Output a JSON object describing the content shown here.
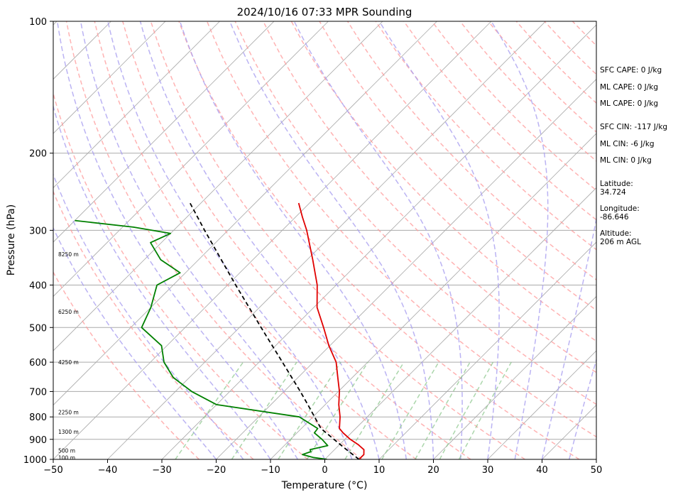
{
  "chart_data": {
    "type": "line",
    "title": "2024/10/16 07:33 MPR Sounding",
    "xlabel": "Temperature (°C)",
    "ylabel": "Pressure (hPa)",
    "xlim": [
      -50,
      50
    ],
    "ylim": [
      1000,
      100
    ],
    "y_scale": "log",
    "skew": true,
    "x_ticks": [
      -50,
      -40,
      -30,
      -20,
      -10,
      0,
      10,
      20,
      30,
      40,
      50
    ],
    "y_ticks": [
      100,
      200,
      300,
      400,
      500,
      600,
      700,
      800,
      900,
      1000
    ],
    "series": [
      {
        "name": "",
        "color": "#e00000",
        "points": [
          {
            "p": 1000,
            "t": 6.3
          },
          {
            "p": 975,
            "t": 6.3
          },
          {
            "p": 950,
            "t": 5.4
          },
          {
            "p": 925,
            "t": 3.4
          },
          {
            "p": 900,
            "t": 1.0
          },
          {
            "p": 870,
            "t": -1.5
          },
          {
            "p": 850,
            "t": -3.0
          },
          {
            "p": 800,
            "t": -5.0
          },
          {
            "p": 750,
            "t": -7.5
          },
          {
            "p": 700,
            "t": -9.8
          },
          {
            "p": 650,
            "t": -12.7
          },
          {
            "p": 600,
            "t": -15.8
          },
          {
            "p": 550,
            "t": -20.2
          },
          {
            "p": 500,
            "t": -24.5
          },
          {
            "p": 450,
            "t": -29.4
          },
          {
            "p": 400,
            "t": -33.5
          },
          {
            "p": 350,
            "t": -39.0
          },
          {
            "p": 300,
            "t": -45.5
          },
          {
            "p": 280,
            "t": -48.7
          },
          {
            "p": 260,
            "t": -52.0
          }
        ]
      },
      {
        "name": "",
        "color": "#008000",
        "points": [
          {
            "p": 1000,
            "t": 0.4
          },
          {
            "p": 990,
            "t": -2.5
          },
          {
            "p": 975,
            "t": -5.0
          },
          {
            "p": 960,
            "t": -4.0
          },
          {
            "p": 950,
            "t": -4.5
          },
          {
            "p": 930,
            "t": -2.0
          },
          {
            "p": 900,
            "t": -4.2
          },
          {
            "p": 870,
            "t": -6.8
          },
          {
            "p": 850,
            "t": -7.0
          },
          {
            "p": 800,
            "t": -12.5
          },
          {
            "p": 750,
            "t": -30.0
          },
          {
            "p": 700,
            "t": -37.0
          },
          {
            "p": 650,
            "t": -43.0
          },
          {
            "p": 600,
            "t": -47.5
          },
          {
            "p": 550,
            "t": -51.0
          },
          {
            "p": 500,
            "t": -58.0
          },
          {
            "p": 450,
            "t": -60.0
          },
          {
            "p": 400,
            "t": -63.0
          },
          {
            "p": 375,
            "t": -61.0
          },
          {
            "p": 350,
            "t": -67.0
          },
          {
            "p": 320,
            "t": -72.0
          },
          {
            "p": 305,
            "t": -70.0
          },
          {
            "p": 295,
            "t": -78.0
          },
          {
            "p": 285,
            "t": -90.0
          }
        ]
      },
      {
        "name": "",
        "color": "#000000",
        "dashed": true,
        "points": [
          {
            "p": 1000,
            "t": 6.3
          },
          {
            "p": 950,
            "t": 2.2
          },
          {
            "p": 900,
            "t": -2.0
          },
          {
            "p": 850,
            "t": -6.4
          },
          {
            "p": 800,
            "t": -9.7
          },
          {
            "p": 750,
            "t": -13.2
          },
          {
            "p": 700,
            "t": -17.0
          },
          {
            "p": 600,
            "t": -25.7
          },
          {
            "p": 500,
            "t": -36.0
          },
          {
            "p": 400,
            "t": -48.5
          },
          {
            "p": 300,
            "t": -64.3
          },
          {
            "p": 260,
            "t": -72.0
          }
        ]
      }
    ],
    "height_labels": [
      {
        "p": 340,
        "text": "8250 m"
      },
      {
        "p": 460,
        "text": "6250 m"
      },
      {
        "p": 600,
        "text": "4250 m"
      },
      {
        "p": 780,
        "text": "2250 m"
      },
      {
        "p": 865,
        "text": "1300 m"
      },
      {
        "p": 955,
        "text": "500 m"
      },
      {
        "p": 990,
        "text": "100 m"
      }
    ],
    "background_lines": {
      "isotherm_color": "#aaaaaa",
      "dry_adiabat_color": "#ff9999",
      "moist_adiabat_color": "#aaa0f0",
      "mixing_ratio_color": "#88c488"
    },
    "grid": true
  },
  "stats": {
    "sfc_cape": "SFC CAPE: 0 J/kg",
    "ml_cape_1": "ML CAPE: 0 J/kg",
    "ml_cape_2": "ML CAPE: 0 J/kg",
    "sfc_cin": "SFC CIN: -117 J/kg",
    "ml_cin_1": "ML CIN: -6 J/kg",
    "ml_cin_2": "ML CIN: 0 J/kg",
    "latitude_label": "Latitude:",
    "latitude_value": "34.724",
    "longitude_label": "Longitude:",
    "longitude_value": "-86.646",
    "altitude_label": "Altitude:",
    "altitude_value": "206 m AGL"
  }
}
